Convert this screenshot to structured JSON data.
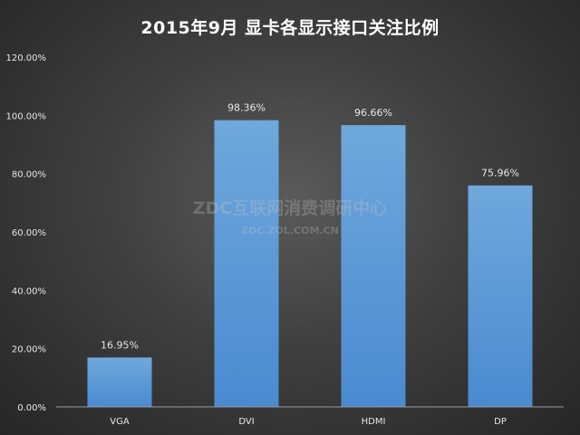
{
  "chart_data": {
    "type": "bar",
    "title": "2015年9月  显卡各显示接口关注比例",
    "categories": [
      "VGA",
      "DVI",
      "HDMI",
      "DP"
    ],
    "values": [
      16.95,
      98.36,
      96.66,
      75.96
    ],
    "data_labels": [
      "16.95%",
      "98.36%",
      "96.66%",
      "75.96%"
    ],
    "ylim": [
      0,
      120
    ],
    "yticks": [
      "0.00%",
      "20.00%",
      "40.00%",
      "60.00%",
      "80.00%",
      "100.00%",
      "120.00%"
    ],
    "grid": false,
    "legend": "none",
    "bar_color": "#5b9bd5"
  },
  "watermark": {
    "main": "ZDC互联网消费调研中心",
    "sub": "ZDC.ZOL.COM.CN"
  }
}
